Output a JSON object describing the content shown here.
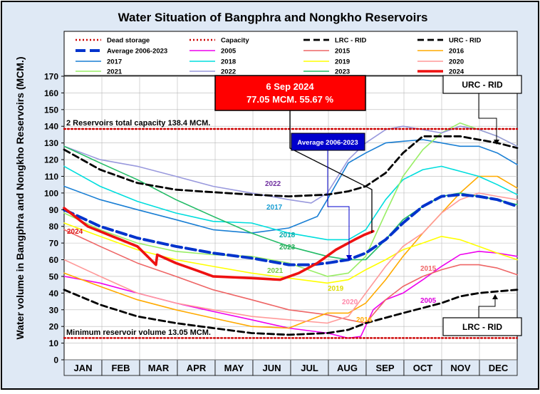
{
  "chart_data": {
    "type": "line",
    "title": "Water Situation of Bangphra and Nongkho Reservoirs",
    "ylabel": "Water volume in Bangphra and Nongkho Reservoirs (MCM.)",
    "xlabel": "",
    "ylim": [
      0,
      170
    ],
    "yticks": [
      0,
      10,
      20,
      30,
      40,
      50,
      60,
      70,
      80,
      90,
      100,
      110,
      120,
      130,
      140,
      150,
      160,
      170
    ],
    "x_unit": "day of year",
    "x_categories": [
      "JAN",
      "FEB",
      "MAR",
      "APR",
      "MAY",
      "JUN",
      "JUL",
      "AUG",
      "SEP",
      "OCT",
      "NOV",
      "DEC"
    ],
    "grid": true,
    "legend_position": "top",
    "colors": {
      "background": "#dfe9f5",
      "plot_background": "#ffffff",
      "month_band": "#dfe9f5",
      "callout_box": "#ff0000",
      "avg_label_box": "#0000cc"
    },
    "series": [
      {
        "name": "Dead storage",
        "color": "#cc0000",
        "style": "dotted",
        "x": [
          1,
          366
        ],
        "y": [
          13.05,
          13.05
        ]
      },
      {
        "name": "Capacity",
        "color": "#cc0000",
        "style": "dotted",
        "x": [
          1,
          366
        ],
        "y": [
          138.4,
          138.4
        ]
      },
      {
        "name": "LRC - RID",
        "color": "#000000",
        "style": "dashed",
        "x": [
          1,
          30,
          60,
          91,
          121,
          152,
          182,
          213,
          230,
          244,
          274,
          305,
          320,
          335,
          350,
          366
        ],
        "y": [
          42,
          33,
          26,
          22,
          19,
          16,
          15,
          16,
          18,
          22,
          28,
          34,
          38,
          40,
          41,
          42
        ]
      },
      {
        "name": "URC - RID",
        "color": "#000000",
        "style": "dashed",
        "x": [
          1,
          30,
          60,
          91,
          110,
          152,
          182,
          213,
          230,
          244,
          260,
          274,
          290,
          305,
          320,
          335,
          350,
          366
        ],
        "y": [
          126,
          114,
          106,
          102,
          101,
          99,
          98,
          99,
          101,
          104,
          112,
          124,
          134,
          134,
          134,
          132,
          130,
          127
        ]
      },
      {
        "name": "Average 2006-2023",
        "color": "#0033cc",
        "style": "dashdot",
        "x": [
          1,
          30,
          60,
          91,
          121,
          152,
          182,
          200,
          213,
          230,
          244,
          260,
          274,
          290,
          305,
          320,
          335,
          350,
          366
        ],
        "y": [
          90,
          80,
          73,
          68,
          64,
          61,
          57,
          57,
          58,
          60,
          64,
          72,
          82,
          92,
          98,
          99,
          98,
          96,
          92
        ]
      },
      {
        "name": "2005",
        "color": "#ee00ee",
        "style": "solid",
        "x": [
          1,
          30,
          60,
          91,
          121,
          152,
          182,
          213,
          230,
          240,
          250,
          260,
          274,
          290,
          305,
          320,
          335,
          350,
          366
        ],
        "y": [
          50,
          46,
          40,
          34,
          29,
          24,
          19,
          16,
          13,
          14,
          30,
          36,
          40,
          48,
          56,
          63,
          65,
          64,
          62
        ]
      },
      {
        "name": "2015",
        "color": "#ee6666",
        "style": "solid",
        "x": [
          1,
          30,
          60,
          91,
          121,
          152,
          182,
          213,
          230,
          244,
          260,
          274,
          290,
          305,
          320,
          335,
          350,
          366
        ],
        "y": [
          78,
          68,
          58,
          50,
          42,
          36,
          30,
          27,
          24,
          22,
          36,
          44,
          50,
          54,
          57,
          57,
          55,
          51
        ]
      },
      {
        "name": "2016",
        "color": "#ffaa00",
        "style": "solid",
        "x": [
          1,
          30,
          60,
          91,
          121,
          152,
          182,
          213,
          230,
          244,
          260,
          274,
          290,
          305,
          320,
          335,
          350,
          366
        ],
        "y": [
          52,
          44,
          36,
          30,
          25,
          20,
          19,
          28,
          28,
          34,
          48,
          62,
          76,
          88,
          100,
          110,
          110,
          103
        ]
      },
      {
        "name": "2017",
        "color": "#1a7fd4",
        "style": "solid",
        "x": [
          1,
          30,
          60,
          91,
          121,
          152,
          182,
          205,
          213,
          230,
          244,
          260,
          274,
          290,
          305,
          320,
          335,
          350,
          366
        ],
        "y": [
          104,
          96,
          90,
          84,
          78,
          76,
          79,
          86,
          96,
          118,
          124,
          130,
          131,
          132,
          130,
          128,
          128,
          124,
          117
        ]
      },
      {
        "name": "2018",
        "color": "#00dddd",
        "style": "solid",
        "x": [
          1,
          30,
          60,
          91,
          121,
          152,
          182,
          213,
          230,
          244,
          260,
          274,
          290,
          305,
          320,
          335,
          350,
          366
        ],
        "y": [
          116,
          104,
          95,
          88,
          83,
          82,
          76,
          72,
          72,
          78,
          96,
          108,
          114,
          116,
          113,
          110,
          105,
          99
        ]
      },
      {
        "name": "2019",
        "color": "#ffff00",
        "style": "solid",
        "x": [
          1,
          30,
          60,
          91,
          121,
          152,
          182,
          213,
          230,
          244,
          260,
          274,
          290,
          305,
          320,
          335,
          350,
          366
        ],
        "y": [
          82,
          74,
          66,
          60,
          56,
          52,
          49,
          46,
          48,
          54,
          60,
          66,
          70,
          74,
          72,
          68,
          64,
          60
        ]
      },
      {
        "name": "2020",
        "color": "#ff9999",
        "style": "solid",
        "x": [
          1,
          30,
          60,
          91,
          121,
          152,
          182,
          213,
          230,
          244,
          260,
          274,
          290,
          305,
          320,
          335,
          350,
          366
        ],
        "y": [
          60,
          50,
          40,
          34,
          30,
          26,
          24,
          22,
          26,
          40,
          56,
          68,
          76,
          88,
          96,
          100,
          98,
          96
        ]
      },
      {
        "name": "2021",
        "color": "#99ee66",
        "style": "solid",
        "x": [
          1,
          30,
          60,
          91,
          121,
          152,
          182,
          213,
          230,
          244,
          260,
          274,
          290,
          305,
          320,
          335,
          350,
          366
        ],
        "y": [
          88,
          78,
          70,
          65,
          63,
          62,
          58,
          50,
          52,
          62,
          88,
          110,
          126,
          136,
          142,
          138,
          134,
          128
        ]
      },
      {
        "name": "2022",
        "color": "#9999dd",
        "style": "solid",
        "x": [
          1,
          30,
          60,
          91,
          121,
          152,
          182,
          200,
          213,
          230,
          244,
          260,
          274,
          290,
          305,
          320,
          335,
          350,
          366
        ],
        "y": [
          128,
          120,
          116,
          110,
          104,
          100,
          96,
          94,
          100,
          120,
          130,
          138,
          140,
          138,
          136,
          140,
          138,
          134,
          128
        ]
      },
      {
        "name": "2023",
        "color": "#22bb66",
        "style": "solid",
        "x": [
          1,
          30,
          60,
          91,
          121,
          152,
          182,
          213,
          230,
          244,
          260,
          274,
          290,
          305,
          320,
          335,
          350,
          366
        ],
        "y": [
          128,
          118,
          108,
          96,
          86,
          76,
          68,
          62,
          60,
          60,
          72,
          84,
          92,
          98,
          100,
          98,
          96,
          93
        ]
      },
      {
        "name": "2024",
        "color": "#ee1111",
        "style": "solid",
        "x": [
          1,
          20,
          40,
          60,
          75,
          76,
          91,
          110,
          121,
          152,
          175,
          190,
          205,
          220,
          235,
          243,
          250
        ],
        "y": [
          91,
          80,
          74,
          68,
          57,
          63,
          58,
          53,
          50,
          49,
          48,
          52,
          58,
          66,
          72,
          75,
          77.05
        ]
      }
    ],
    "annotations": [
      {
        "id": "callout_date",
        "text": "6 Sep 2024"
      },
      {
        "id": "callout_value",
        "text": "77.05 MCM. 55.67 %"
      },
      {
        "id": "avg_label",
        "text": "Average 2006-2023"
      },
      {
        "id": "capacity_label",
        "text": "2 Reservoirs total capacity 138.4 MCM."
      },
      {
        "id": "min_label",
        "text": "Minimum reservoir volume 13.05 MCM."
      },
      {
        "id": "urc_box",
        "text": "URC - RID"
      },
      {
        "id": "lrc_box",
        "text": "LRC - RID"
      },
      {
        "id": "lbl_2022",
        "text": "2022"
      },
      {
        "id": "lbl_2017",
        "text": "2017"
      },
      {
        "id": "lbl_2018",
        "text": "2018"
      },
      {
        "id": "lbl_2023",
        "text": "2023"
      },
      {
        "id": "lbl_2021",
        "text": "2021"
      },
      {
        "id": "lbl_2019",
        "text": "2019"
      },
      {
        "id": "lbl_2020",
        "text": "2020"
      },
      {
        "id": "lbl_2016",
        "text": "2016"
      },
      {
        "id": "lbl_2015",
        "text": "2015"
      },
      {
        "id": "lbl_2005",
        "text": "2005"
      },
      {
        "id": "lbl_2024",
        "text": "2024"
      }
    ]
  }
}
